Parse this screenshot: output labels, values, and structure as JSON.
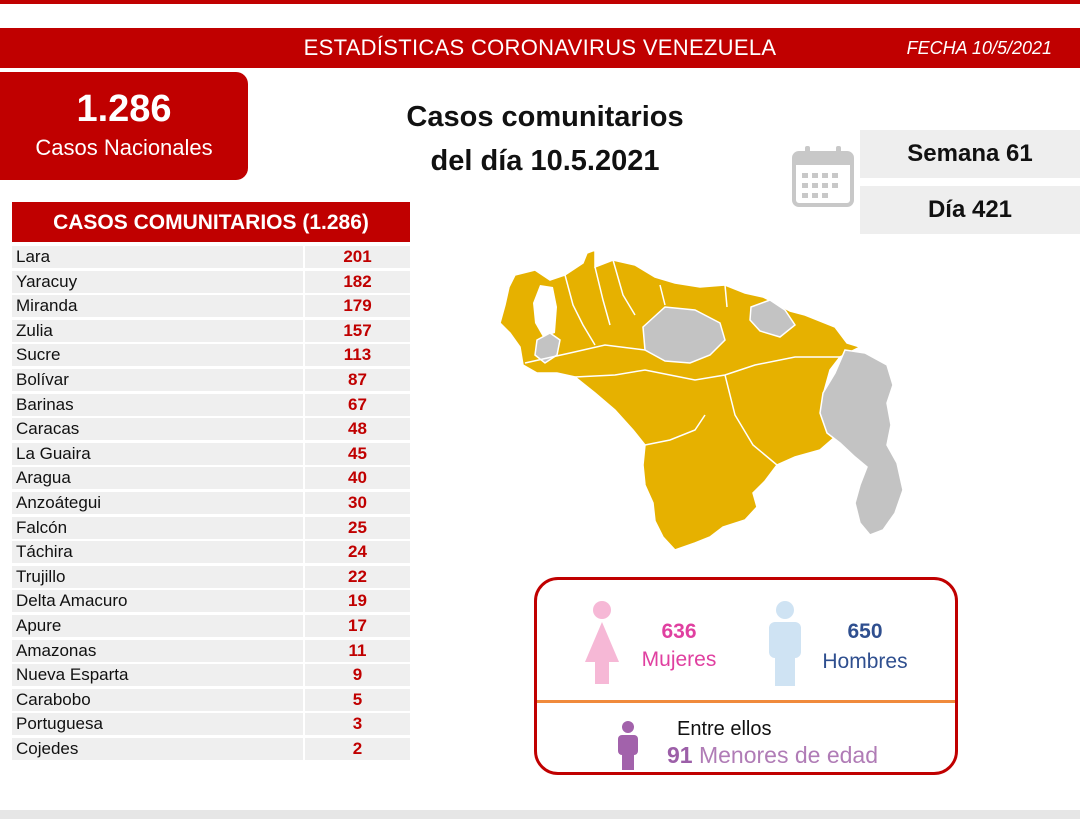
{
  "header": {
    "title": "ESTADÍSTICAS CORONAVIRUS VENEZUELA",
    "date": "FECHA 10/5/2021"
  },
  "national": {
    "count": "1.286",
    "label": "Casos Nacionales"
  },
  "main_title": {
    "line1": "Casos comunitarios",
    "line2": "del día 10.5.2021"
  },
  "week": "Semana 61",
  "day": "Día 421",
  "table": {
    "header": "CASOS COMUNITARIOS (1.286)",
    "rows": [
      {
        "state": "Lara",
        "cases": "201"
      },
      {
        "state": "Yaracuy",
        "cases": "182"
      },
      {
        "state": "Miranda",
        "cases": "179"
      },
      {
        "state": "Zulia",
        "cases": "157"
      },
      {
        "state": "Sucre",
        "cases": "113"
      },
      {
        "state": "Bolívar",
        "cases": "87"
      },
      {
        "state": "Barinas",
        "cases": "67"
      },
      {
        "state": "Caracas",
        "cases": "48"
      },
      {
        "state": "La Guaira",
        "cases": "45"
      },
      {
        "state": "Aragua",
        "cases": "40"
      },
      {
        "state": "Anzoátegui",
        "cases": "30"
      },
      {
        "state": "Falcón",
        "cases": "25"
      },
      {
        "state": "Táchira",
        "cases": "24"
      },
      {
        "state": "Trujillo",
        "cases": "22"
      },
      {
        "state": "Delta Amacuro",
        "cases": "19"
      },
      {
        "state": "Apure",
        "cases": "17"
      },
      {
        "state": "Amazonas",
        "cases": "11"
      },
      {
        "state": "Nueva Esparta",
        "cases": "9"
      },
      {
        "state": "Carabobo",
        "cases": "5"
      },
      {
        "state": "Portuguesa",
        "cases": "3"
      },
      {
        "state": "Cojedes",
        "cases": "2"
      }
    ]
  },
  "map": {
    "affected_color": "#e6b100",
    "unaffected_color": "#c3c3c3"
  },
  "gender": {
    "female_count": "636",
    "female_label": "Mujeres",
    "male_count": "650",
    "male_label": "Hombres",
    "among_label": "Entre ellos",
    "minors_count": "91",
    "minors_label": "Menores de edad"
  },
  "colors": {
    "brand_red": "#c00000",
    "female": "#e040a0",
    "male": "#2f4f8f",
    "minors": "#9c5fa8"
  }
}
